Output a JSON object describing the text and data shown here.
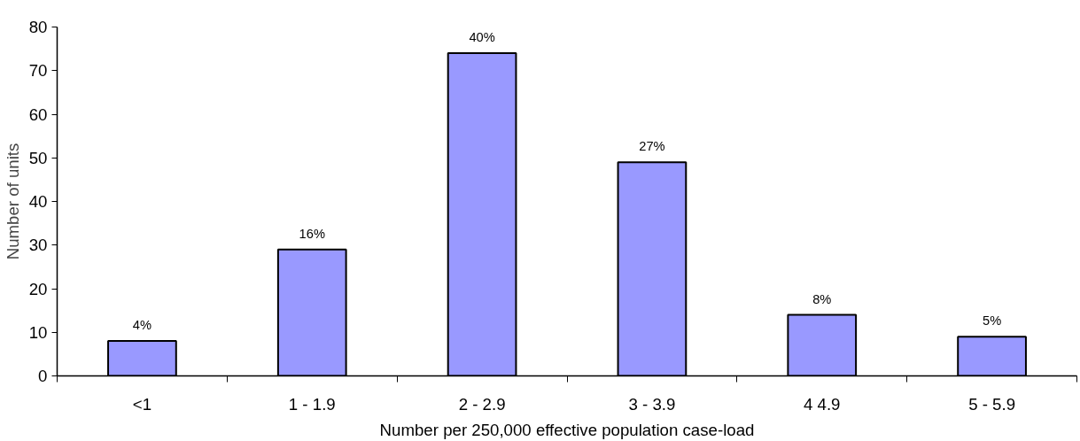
{
  "chart_data": {
    "type": "bar",
    "xlabel": "Number per 250,000 effective population case-load",
    "ylabel": "Number of units",
    "categories": [
      "<1",
      "1 - 1.9",
      "2 - 2.9",
      "3 - 3.9",
      "4 4.9",
      "5 - 5.9"
    ],
    "values": [
      8,
      29,
      74,
      49,
      14,
      9
    ],
    "annotations": [
      {
        "text": "4%",
        "x": "<1",
        "y": 8
      },
      {
        "text": "16%",
        "x": "1 - 1.9",
        "y": 29
      },
      {
        "text": "40%",
        "x": "2 - 2.9",
        "y": 74
      },
      {
        "text": "27%",
        "x": "3 - 3.9",
        "y": 49
      },
      {
        "text": "8%",
        "x": "4 4.9",
        "y": 14
      },
      {
        "text": "5%",
        "x": "5 - 5.9",
        "y": 9
      }
    ],
    "color": "#9999ff",
    "ylim": [
      0,
      80
    ],
    "yticks": [
      0,
      10,
      20,
      30,
      40,
      50,
      60,
      70,
      80
    ],
    "grid": false
  }
}
